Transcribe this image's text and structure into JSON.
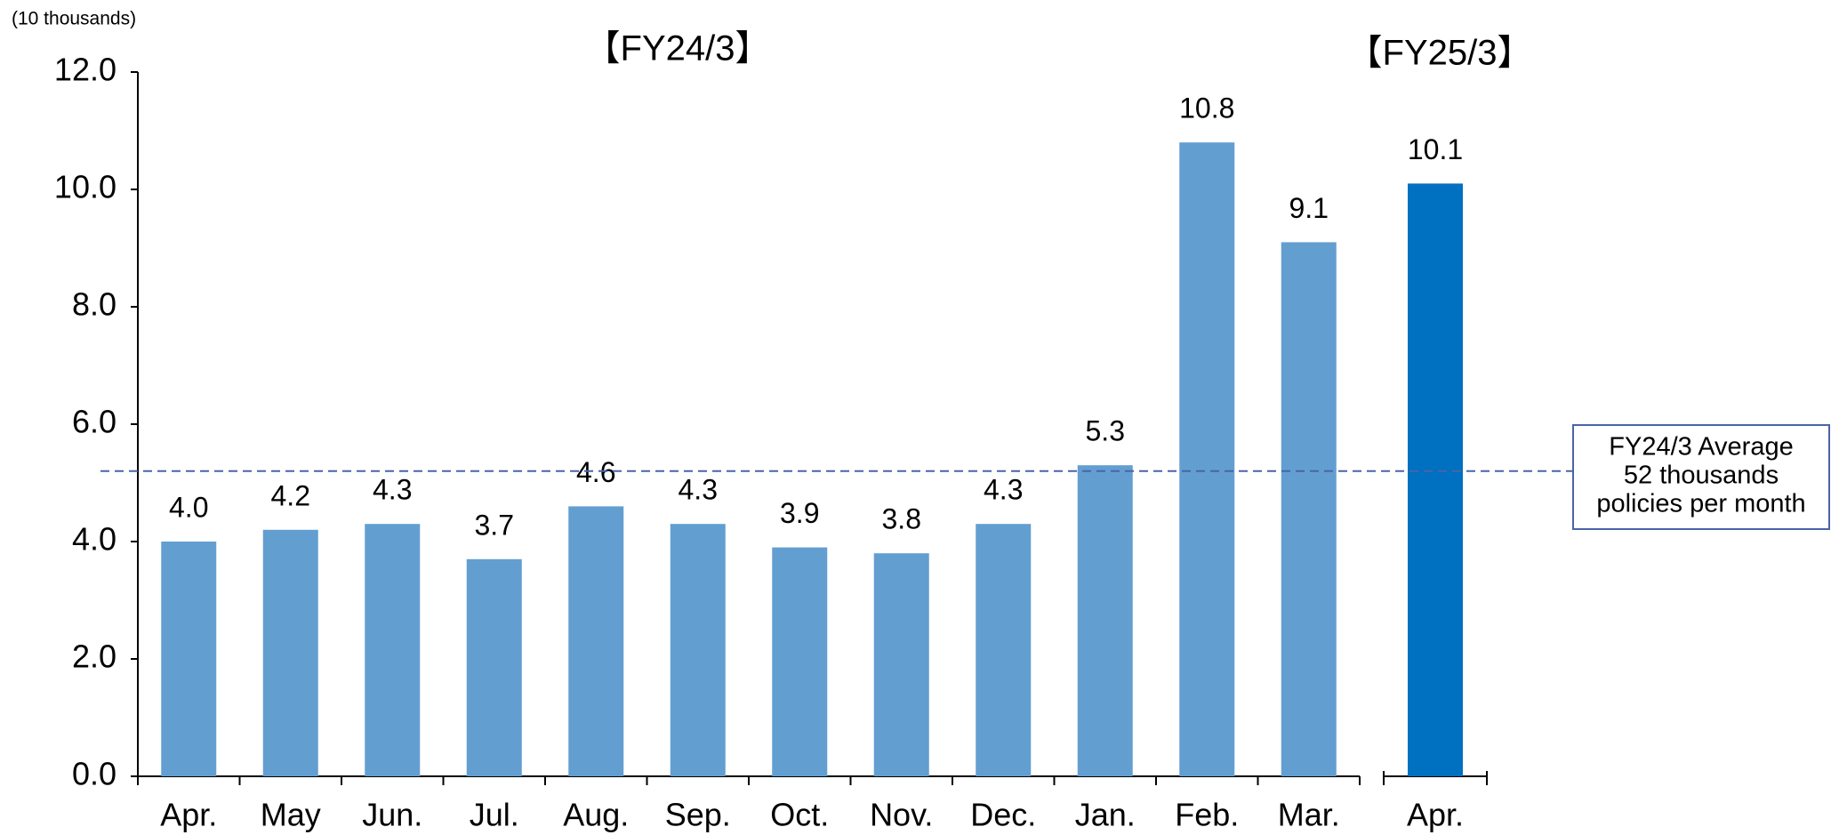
{
  "chart_data": {
    "type": "bar",
    "unit_label": "(10 thousands)",
    "ylim": [
      0,
      12
    ],
    "yticks": [
      {
        "value": 0,
        "label": "0.0"
      },
      {
        "value": 2,
        "label": "2.0"
      },
      {
        "value": 4,
        "label": "4.0"
      },
      {
        "value": 6,
        "label": "6.0"
      },
      {
        "value": 8,
        "label": "8.0"
      },
      {
        "value": 10,
        "label": "10.0"
      },
      {
        "value": 12,
        "label": "12.0"
      }
    ],
    "groups": [
      {
        "label": "【FY24/3】",
        "color": "#639ed1",
        "categories": [
          "Apr.",
          "May",
          "Jun.",
          "Jul.",
          "Aug.",
          "Sep.",
          "Oct.",
          "Nov.",
          "Dec.",
          "Jan.",
          "Feb.",
          "Mar."
        ],
        "values": [
          4.0,
          4.2,
          4.3,
          3.7,
          4.6,
          4.3,
          3.9,
          3.8,
          4.3,
          5.3,
          10.8,
          9.1
        ],
        "value_labels": [
          "4.0",
          "4.2",
          "4.3",
          "3.7",
          "4.6",
          "4.3",
          "3.9",
          "3.8",
          "4.3",
          "5.3",
          "10.8",
          "9.1"
        ]
      },
      {
        "label": "【FY25/3】",
        "color": "#0070c0",
        "categories": [
          "Apr."
        ],
        "values": [
          10.1
        ],
        "value_labels": [
          "10.1"
        ]
      }
    ],
    "average": {
      "value": 5.2,
      "color": "#4a64a8",
      "lines": [
        "FY24/3 Average",
        "52 thousands",
        "policies per month"
      ]
    }
  }
}
